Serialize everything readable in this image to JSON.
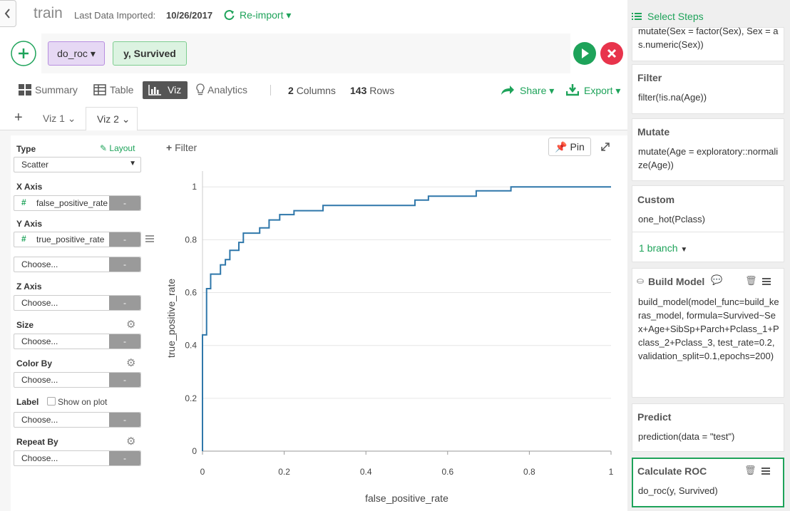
{
  "header": {
    "title": "train",
    "last_imported_label": "Last Data Imported:",
    "last_imported_date": "10/26/2017",
    "reimport": "Re-import"
  },
  "command": {
    "function": "do_roc",
    "args": "y, Survived"
  },
  "view_tabs": [
    "Summary",
    "Table",
    "Viz",
    "Analytics"
  ],
  "columns": {
    "count": 2,
    "label": "Columns"
  },
  "rows": {
    "count": 143,
    "label": "Rows"
  },
  "share": "Share",
  "export": "Export",
  "viz_tabs": [
    "Viz 1",
    "Viz 2"
  ],
  "config": {
    "type_label": "Type",
    "layout": "Layout",
    "type_value": "Scatter",
    "x_axis_label": "X Axis",
    "x_axis_value": "false_positive_rate",
    "y_axis_label": "Y Axis",
    "y_axis_value": "true_positive_rate",
    "z_axis_label": "Z Axis",
    "size_label": "Size",
    "color_label": "Color By",
    "label_label": "Label",
    "show_on_plot": "Show on plot",
    "repeat_label": "Repeat By",
    "placeholder": "Choose...",
    "remove": "-"
  },
  "chart_toolbar": {
    "filter": "Filter",
    "pin": "Pin"
  },
  "chart_data": {
    "type": "line",
    "x_label": "false_positive_rate",
    "y_label": "true_positive_rate",
    "x": [
      0,
      0,
      0.01,
      0.01,
      0.02,
      0.02,
      0.044,
      0.044,
      0.056,
      0.056,
      0.067,
      0.067,
      0.089,
      0.089,
      0.1,
      0.1,
      0.14,
      0.14,
      0.163,
      0.163,
      0.189,
      0.189,
      0.224,
      0.224,
      0.295,
      0.295,
      0.52,
      0.52,
      0.553,
      0.553,
      0.67,
      0.67,
      0.755,
      0.755,
      1
    ],
    "values": [
      0,
      0.44,
      0.44,
      0.615,
      0.615,
      0.67,
      0.67,
      0.705,
      0.705,
      0.725,
      0.725,
      0.76,
      0.76,
      0.79,
      0.79,
      0.825,
      0.825,
      0.845,
      0.845,
      0.875,
      0.875,
      0.895,
      0.895,
      0.91,
      0.91,
      0.93,
      0.93,
      0.95,
      0.95,
      0.965,
      0.965,
      0.985,
      0.985,
      1,
      1
    ],
    "color": "#2f77aa",
    "xlim": [
      0,
      1
    ],
    "ylim": [
      0,
      1.06
    ],
    "xticks": [
      0,
      0.2,
      0.4,
      0.6,
      0.8,
      1
    ],
    "yticks": [
      0,
      0.2,
      0.4,
      0.6,
      0.8,
      1
    ],
    "ygrid": true
  },
  "steps_panel": {
    "title": "Select Steps",
    "steps": [
      {
        "code": "mutate(Sex = factor(Sex), Sex = as.numeric(Sex))"
      },
      {
        "title": "Filter",
        "code": "filter(!is.na(Age))"
      },
      {
        "title": "Mutate",
        "code": "mutate(Age = exploratory::normalize(Age))"
      },
      {
        "title": "Custom",
        "code": "one_hot(Pclass)",
        "branch": "1 branch"
      },
      {
        "title": "Build Model",
        "code": "build_model(model_func=build_keras_model, formula=Survived~Sex+Age+SibSp+Parch+Pclass_1+Pclass_2+Pclass_3, test_rate=0.2, validation_split=0.1,epochs=200)"
      },
      {
        "title": "Predict",
        "code": "prediction(data = \"test\")"
      },
      {
        "title": "Calculate ROC",
        "code": "do_roc(y, Survived)"
      }
    ]
  }
}
